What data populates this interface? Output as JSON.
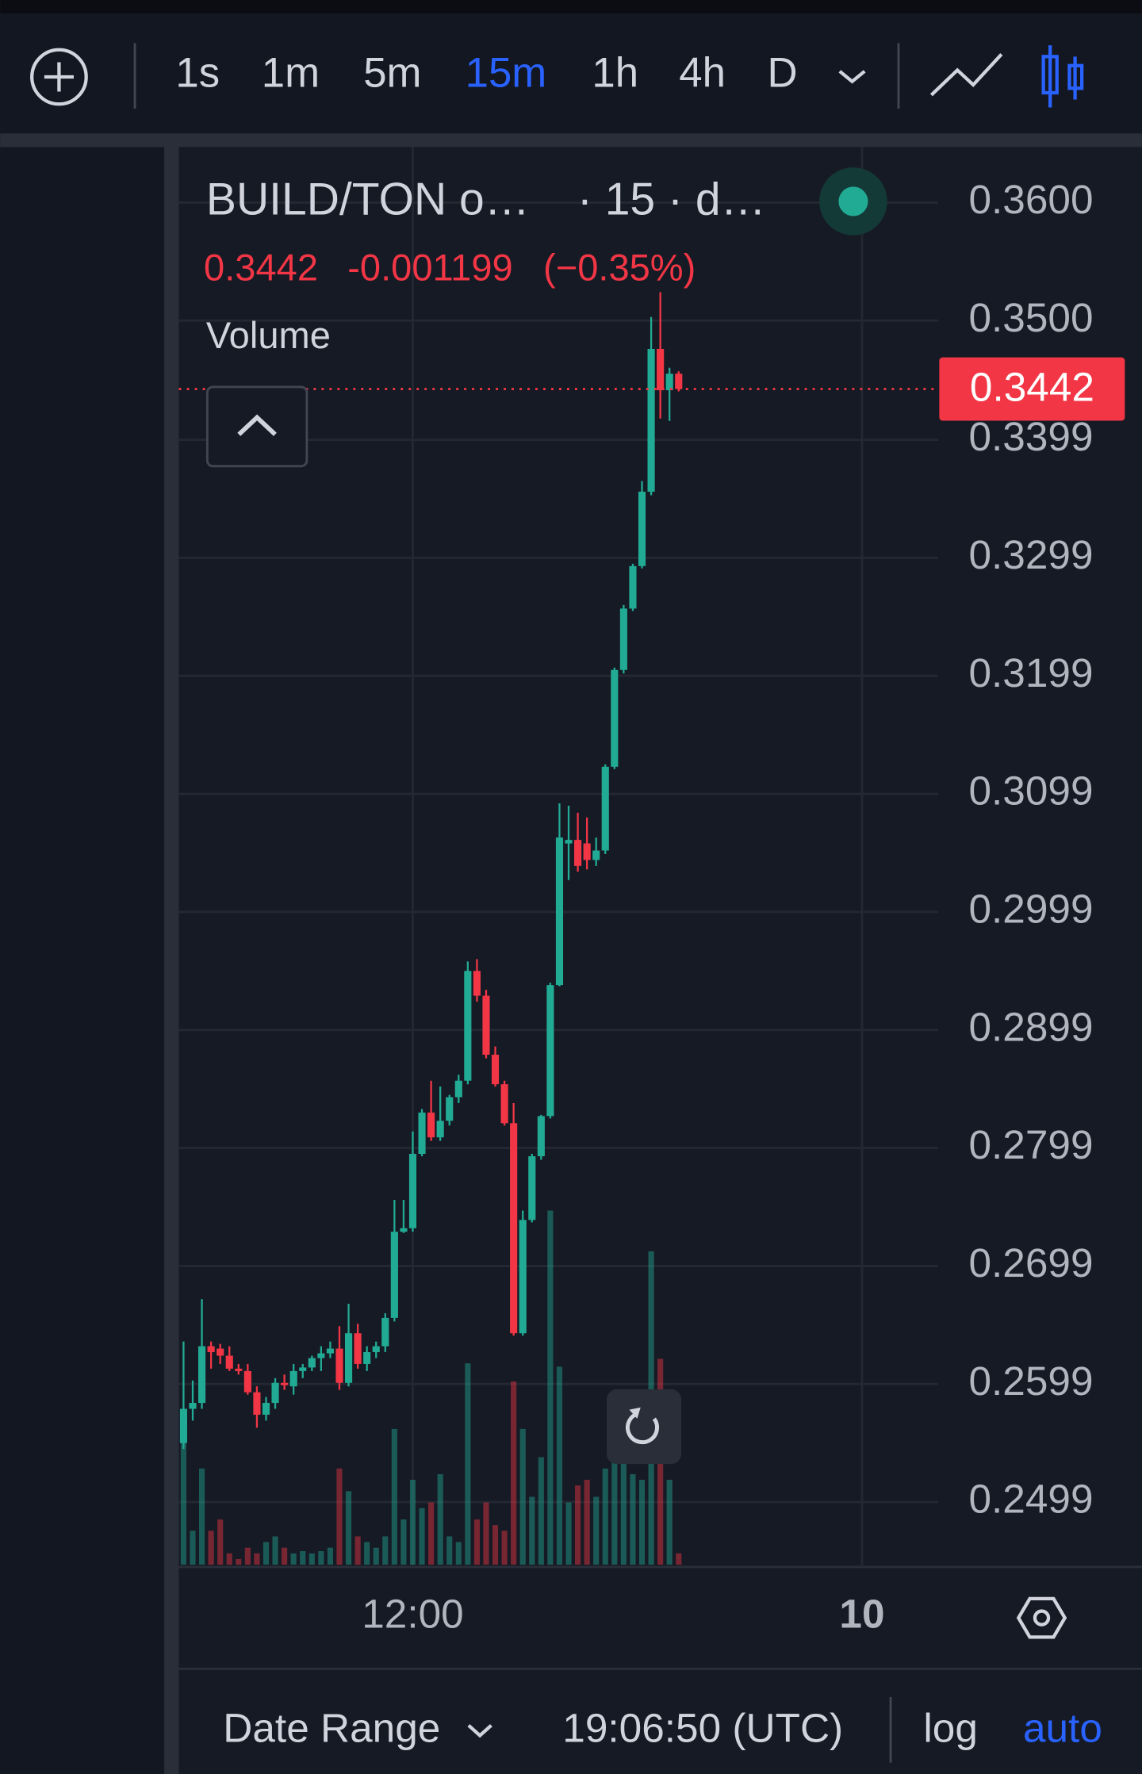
{
  "toolbar": {
    "intervals": [
      "1s",
      "1m",
      "5m",
      "15m",
      "1h",
      "4h",
      "D"
    ],
    "active_interval": 3,
    "active_color": "#2962ff"
  },
  "legend": {
    "symbol": "BUILD/TON o…",
    "interval": "· 15 · d…",
    "last": "0.3442",
    "change": "-0.001199",
    "change_pct": "(−0.35%)",
    "indicator": "Volume"
  },
  "footer": {
    "date_range": "Date Range",
    "clock": "19:06:50 (UTC)",
    "log": "log",
    "auto": "auto"
  },
  "chart_data": {
    "type": "candlestick",
    "up_color": "#22ab94",
    "down_color": "#f23645",
    "grid": true,
    "ylim": [
      0.2444,
      0.3647
    ],
    "yticks": [
      {
        "value": 0.36,
        "label": "0.3600"
      },
      {
        "value": 0.35,
        "label": "0.3500"
      },
      0.3399,
      0.3299,
      0.3199,
      0.3099,
      0.2999,
      0.2899,
      0.2799,
      0.2699,
      0.2599,
      0.2499
    ],
    "xlim": [
      -0.5,
      82.3
    ],
    "xticks": [
      {
        "value": 25,
        "label": "12:00"
      },
      {
        "value": 74,
        "label": "10"
      }
    ],
    "last_price": {
      "value": 0.3442,
      "label": "0.3442"
    },
    "open": [
      0.2549,
      0.2578,
      0.2583,
      0.2631,
      0.2629,
      0.2623,
      0.2612,
      0.261,
      0.2592,
      0.2573,
      0.2583,
      0.26,
      0.2597,
      0.261,
      0.2613,
      0.2621,
      0.2625,
      0.2629,
      0.26,
      0.2642,
      0.2616,
      0.2626,
      0.2631,
      0.2655,
      0.2728,
      0.2731,
      0.2794,
      0.2829,
      0.2808,
      0.2822,
      0.2842,
      0.2856,
      0.2949,
      0.2928,
      0.2878,
      0.2853,
      0.282,
      0.2642,
      0.2738,
      0.2792,
      0.2826,
      0.2937,
      0.3057,
      0.306,
      0.3057,
      0.3043,
      0.3051,
      0.3122,
      0.3204,
      0.3256,
      0.3292,
      0.3355,
      0.3476,
      0.3441,
      0.3455
    ],
    "high": [
      0.2635,
      0.2602,
      0.2671,
      0.2635,
      0.2633,
      0.2631,
      0.2616,
      0.2616,
      0.2597,
      0.2588,
      0.2604,
      0.2607,
      0.2616,
      0.2616,
      0.2623,
      0.2631,
      0.2635,
      0.2648,
      0.2667,
      0.265,
      0.2631,
      0.2635,
      0.2659,
      0.2755,
      0.2755,
      0.2813,
      0.2832,
      0.2856,
      0.2851,
      0.2844,
      0.2861,
      0.2957,
      0.2959,
      0.2933,
      0.2885,
      0.2856,
      0.2837,
      0.2746,
      0.2794,
      0.2827,
      0.2939,
      0.3091,
      0.3089,
      0.3083,
      0.3079,
      0.3062,
      0.3124,
      0.3206,
      0.3259,
      0.3294,
      0.3364,
      0.3503,
      0.3524,
      0.346,
      0.3457
    ],
    "low": [
      0.2544,
      0.2568,
      0.2578,
      0.2612,
      0.2616,
      0.261,
      0.2607,
      0.259,
      0.2562,
      0.2568,
      0.2578,
      0.2594,
      0.259,
      0.2604,
      0.261,
      0.261,
      0.2621,
      0.2594,
      0.2597,
      0.2612,
      0.261,
      0.2621,
      0.2626,
      0.2652,
      0.2727,
      0.2728,
      0.2792,
      0.2805,
      0.2805,
      0.2818,
      0.2837,
      0.2853,
      0.2923,
      0.2875,
      0.2851,
      0.2818,
      0.264,
      0.264,
      0.2736,
      0.2789,
      0.2824,
      0.2936,
      0.3026,
      0.3033,
      0.3035,
      0.3038,
      0.3048,
      0.312,
      0.3201,
      0.3254,
      0.329,
      0.3352,
      0.3417,
      0.3415,
      0.344
    ],
    "close": [
      0.2578,
      0.2583,
      0.2631,
      0.2626,
      0.2623,
      0.2612,
      0.261,
      0.2592,
      0.2573,
      0.2583,
      0.26,
      0.2598,
      0.261,
      0.2613,
      0.2621,
      0.2625,
      0.2629,
      0.26,
      0.2642,
      0.2616,
      0.2626,
      0.2631,
      0.2655,
      0.2728,
      0.2731,
      0.2794,
      0.2829,
      0.2808,
      0.2822,
      0.2842,
      0.2856,
      0.2949,
      0.2928,
      0.2878,
      0.2853,
      0.282,
      0.2642,
      0.2738,
      0.2792,
      0.2826,
      0.2937,
      0.3062,
      0.306,
      0.3038,
      0.3043,
      0.3051,
      0.3122,
      0.3204,
      0.3256,
      0.3292,
      0.3355,
      0.3476,
      0.3441,
      0.3455,
      0.3442
    ],
    "volume": [
      110,
      30,
      85,
      30,
      40,
      10,
      5,
      15,
      10,
      20,
      25,
      15,
      10,
      12,
      10,
      12,
      15,
      85,
      65,
      25,
      20,
      15,
      25,
      120,
      40,
      75,
      50,
      55,
      80,
      25,
      20,
      178,
      40,
      55,
      35,
      30,
      162,
      120,
      60,
      95,
      313,
      175,
      55,
      70,
      75,
      60,
      85,
      90,
      130,
      80,
      75,
      277,
      182,
      75,
      10
    ]
  }
}
